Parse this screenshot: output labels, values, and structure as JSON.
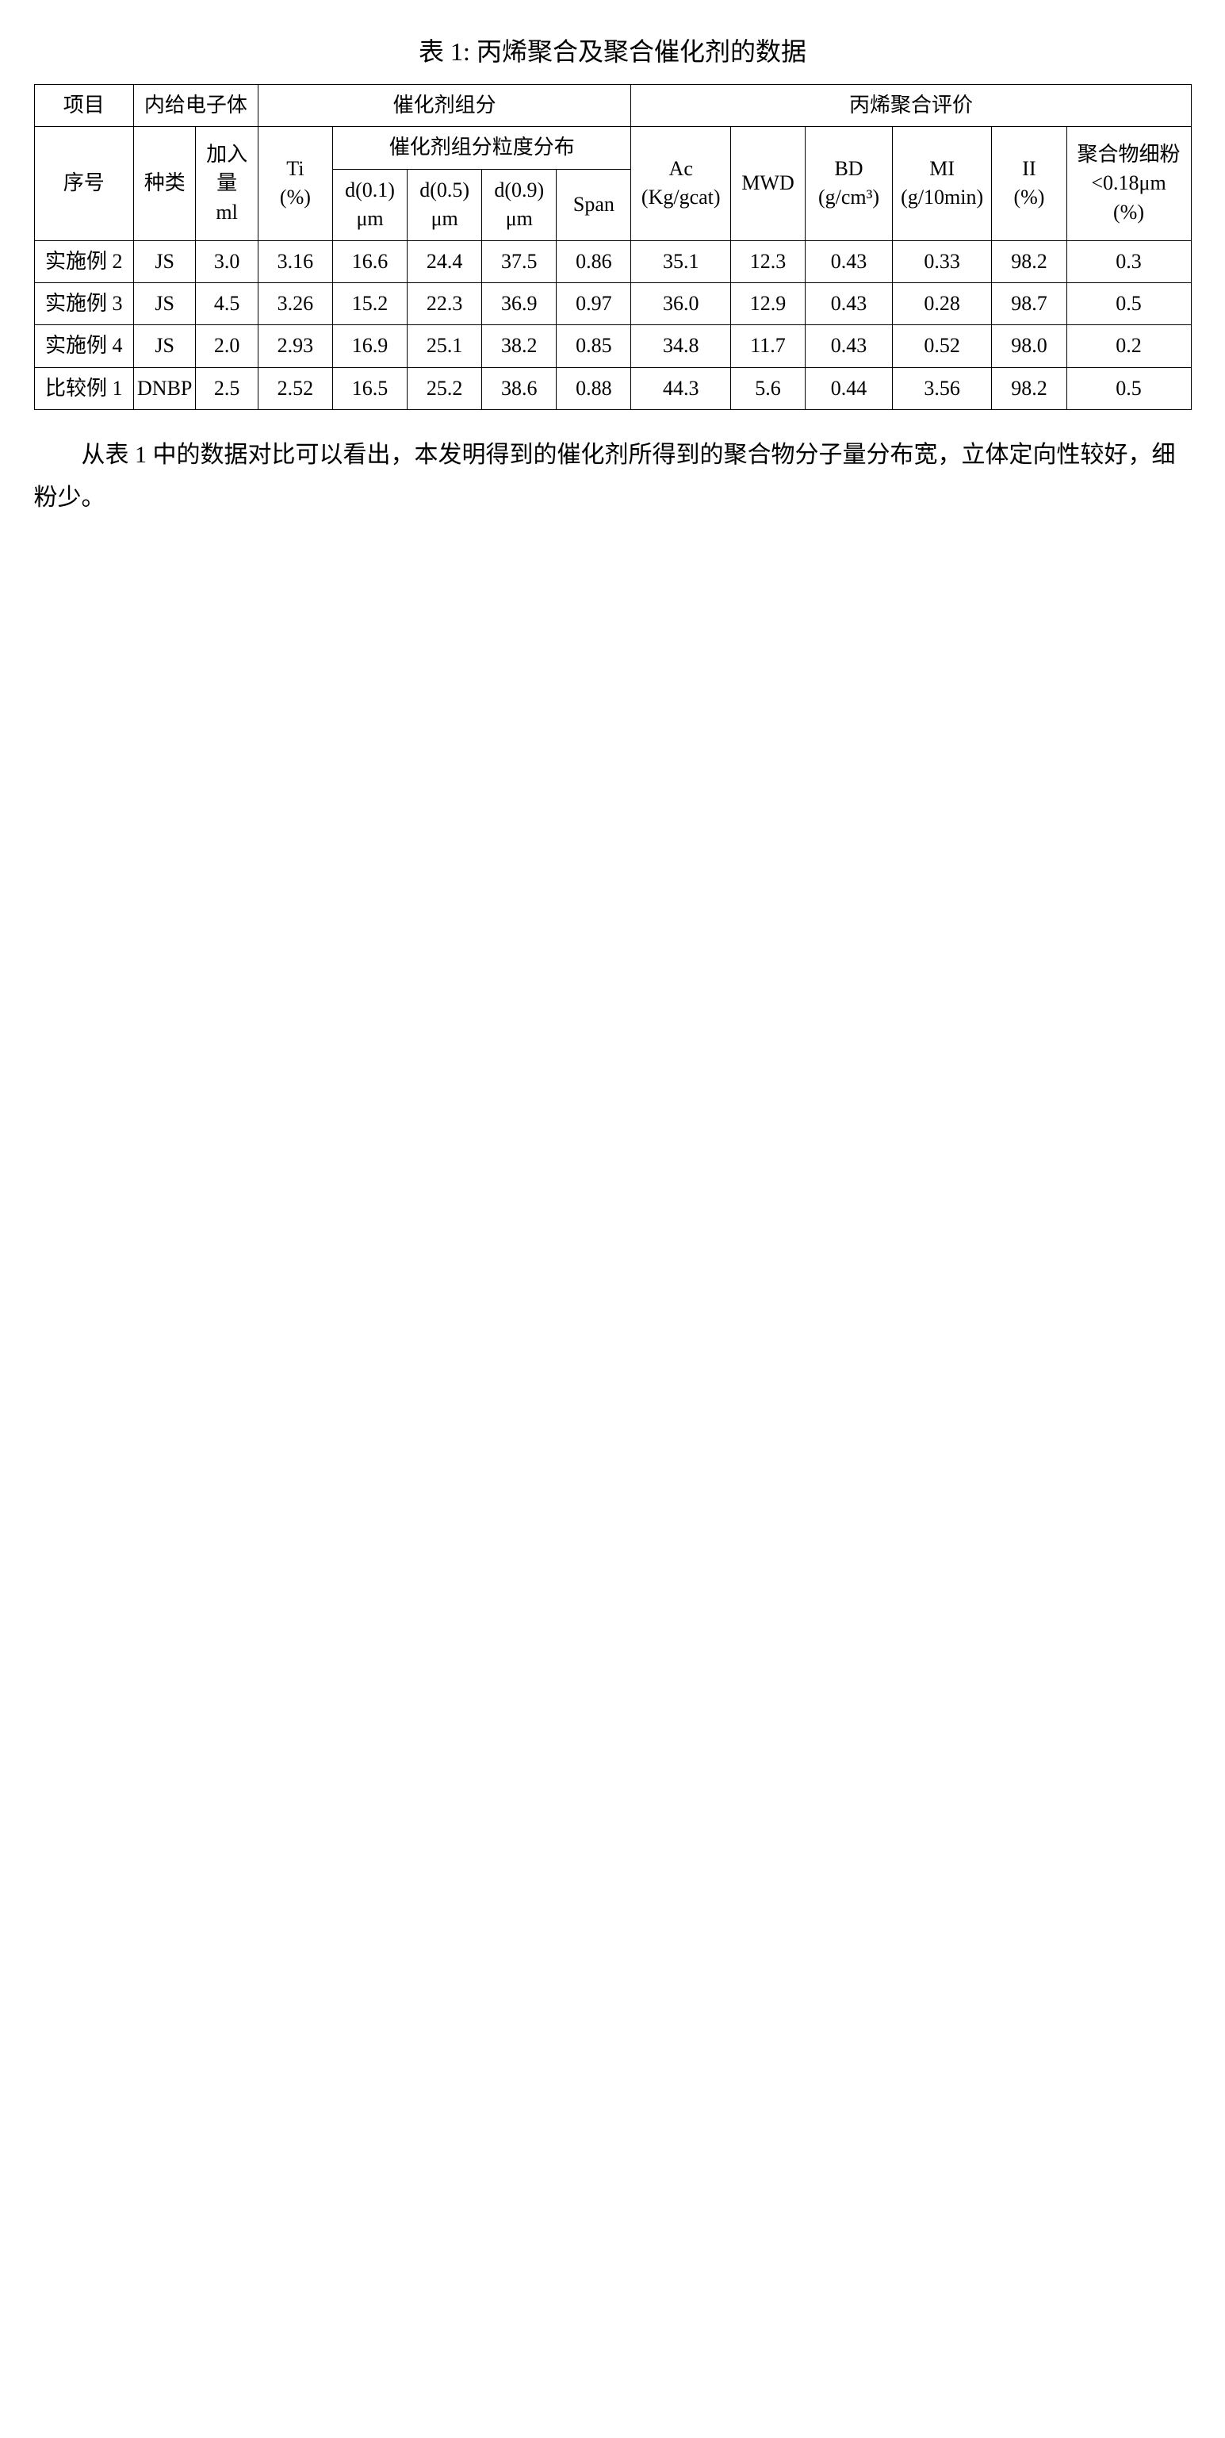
{
  "title": "表 1: 丙烯聚合及聚合催化剂的数据",
  "footnote": "从表 1 中的数据对比可以看出，本发明得到的催化剂所得到的聚合物分子量分布宽，立体定向性较好，细粉少。",
  "headers": {
    "project": "项目",
    "index": "序号",
    "donor": "内给电子体",
    "kind": "种类",
    "amount_top": "加入量",
    "amount_unit": "ml",
    "catalyst_component": "催化剂组分",
    "ti_label": "Ti",
    "ti_unit": "(%)",
    "psd": "催化剂组分粒度分布",
    "d01_label": "d(0.1)",
    "d01_unit": "μm",
    "d05_label": "d(0.5)",
    "d05_unit": "μm",
    "d09_label": "d(0.9)",
    "d09_unit": "μm",
    "span": "Span",
    "poly_eval": "丙烯聚合评价",
    "ac_label": "Ac",
    "ac_unit": "(Kg/gcat)",
    "mwd": "MWD",
    "bd_label": "BD",
    "bd_unit": "(g/cm³)",
    "mi_label": "MI",
    "mi_unit": "(g/10min)",
    "ii_label": "II",
    "ii_unit": "(%)",
    "fines_l1": "聚合物细粉",
    "fines_l2": "<0.18μm",
    "fines_l3": "(%)"
  },
  "rows": [
    {
      "index": "实施例 2",
      "kind": "JS",
      "amount": "3.0",
      "ti": "3.16",
      "d01": "16.6",
      "d05": "24.4",
      "d09": "37.5",
      "span": "0.86",
      "ac": "35.1",
      "mwd": "12.3",
      "bd": "0.43",
      "mi": "0.33",
      "ii": "98.2",
      "fines": "0.3"
    },
    {
      "index": "实施例 3",
      "kind": "JS",
      "amount": "4.5",
      "ti": "3.26",
      "d01": "15.2",
      "d05": "22.3",
      "d09": "36.9",
      "span": "0.97",
      "ac": "36.0",
      "mwd": "12.9",
      "bd": "0.43",
      "mi": "0.28",
      "ii": "98.7",
      "fines": "0.5"
    },
    {
      "index": "实施例 4",
      "kind": "JS",
      "amount": "2.0",
      "ti": "2.93",
      "d01": "16.9",
      "d05": "25.1",
      "d09": "38.2",
      "span": "0.85",
      "ac": "34.8",
      "mwd": "11.7",
      "bd": "0.43",
      "mi": "0.52",
      "ii": "98.0",
      "fines": "0.2"
    },
    {
      "index": "比较例 1",
      "kind": "DNBP",
      "amount": "2.5",
      "ti": "2.52",
      "d01": "16.5",
      "d05": "25.2",
      "d09": "38.6",
      "span": "0.88",
      "ac": "44.3",
      "mwd": "5.6",
      "bd": "0.44",
      "mi": "3.56",
      "ii": "98.2",
      "fines": "0.5"
    }
  ]
}
